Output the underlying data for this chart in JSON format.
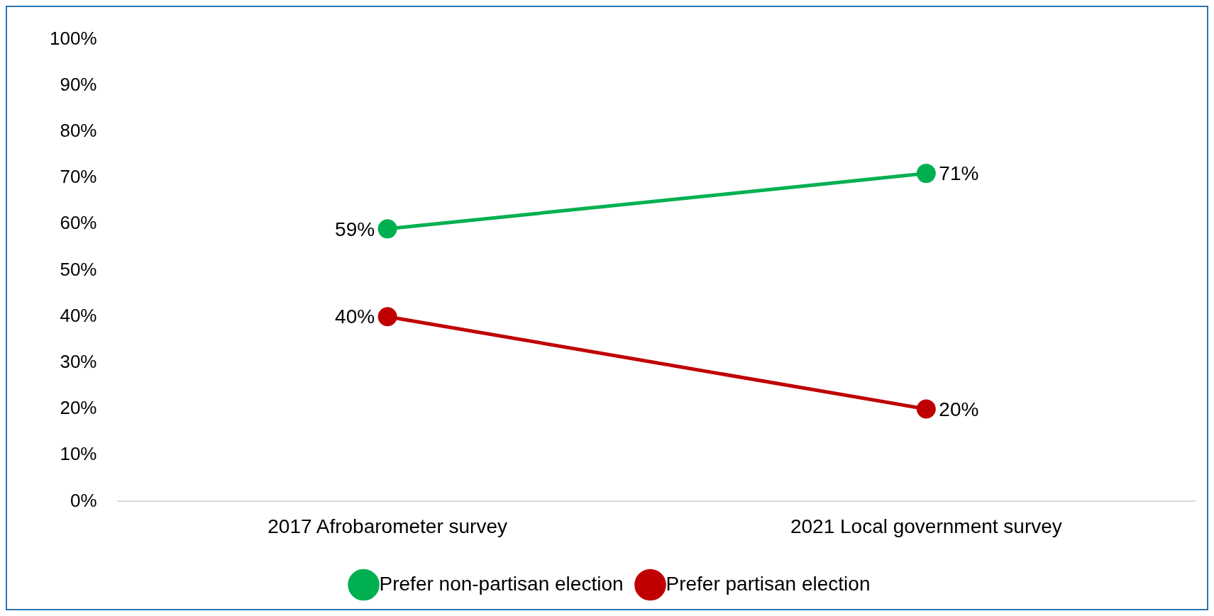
{
  "chart_data": {
    "type": "line",
    "categories": [
      "2017 Afrobarometer survey",
      "2021 Local government survey"
    ],
    "series": [
      {
        "name": "Prefer non-partisan election",
        "color": "#00b050",
        "values": [
          59,
          71
        ],
        "value_labels": [
          "59%",
          "71%"
        ]
      },
      {
        "name": "Prefer partisan election",
        "color": "#c00000",
        "values": [
          40,
          20
        ],
        "value_labels": [
          "40%",
          "20%"
        ]
      }
    ],
    "ylim": [
      0,
      100
    ],
    "yticks": [
      {
        "value": 0,
        "label": "0%"
      },
      {
        "value": 10,
        "label": "10%"
      },
      {
        "value": 20,
        "label": "20%"
      },
      {
        "value": 30,
        "label": "30%"
      },
      {
        "value": 40,
        "label": "40%"
      },
      {
        "value": 50,
        "label": "50%"
      },
      {
        "value": 60,
        "label": "60%"
      },
      {
        "value": 70,
        "label": "70%"
      },
      {
        "value": 80,
        "label": "80%"
      },
      {
        "value": 90,
        "label": "90%"
      },
      {
        "value": 100,
        "label": "100%"
      }
    ],
    "grid": false,
    "legend": "bottom",
    "marker": "circle",
    "line_style": "solid"
  }
}
